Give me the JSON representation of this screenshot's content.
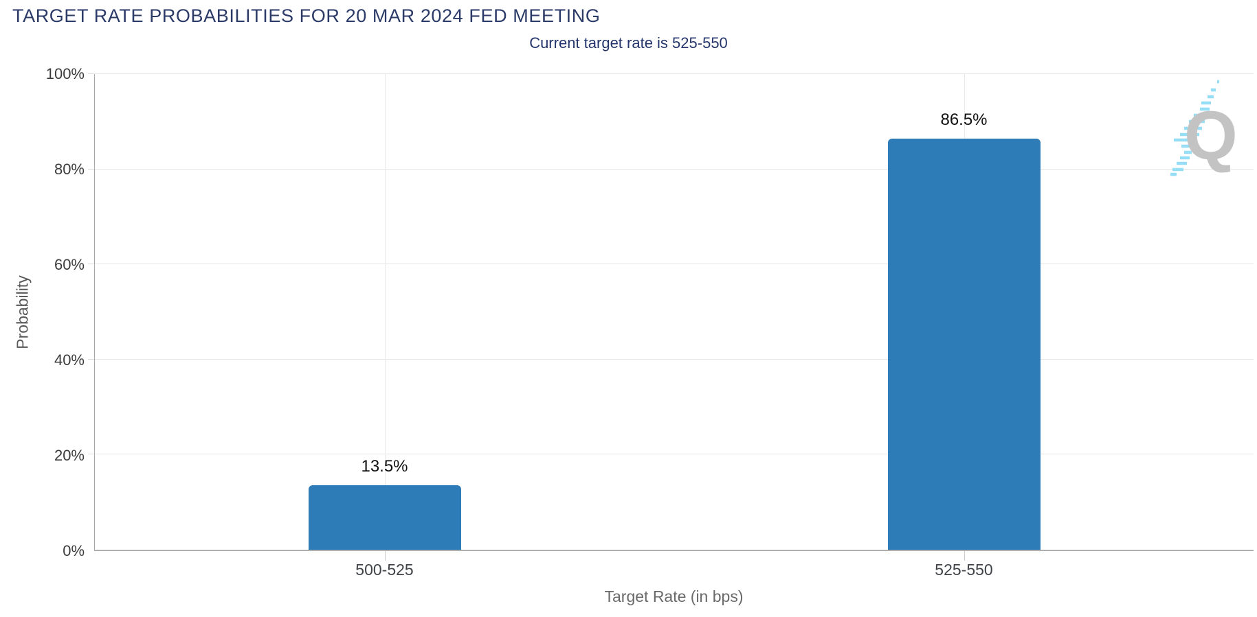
{
  "chart_data": {
    "type": "bar",
    "title": "TARGET RATE PROBABILITIES FOR 20 MAR 2024 FED MEETING",
    "subtitle": "Current target rate is 525-550",
    "categories": [
      "500-525",
      "525-550"
    ],
    "values": [
      13.5,
      86.5
    ],
    "data_labels": [
      "13.5%",
      "86.5%"
    ],
    "xlabel": "Target Rate (in bps)",
    "ylabel": "Probability",
    "ylim": [
      0,
      100
    ],
    "yticks": [
      0,
      20,
      40,
      60,
      80,
      100
    ],
    "ytick_labels": [
      "0%",
      "20%",
      "40%",
      "60%",
      "80%",
      "100%"
    ],
    "grid": true,
    "legend_position": "none",
    "bar_color": "#2d7cb8"
  },
  "watermark": {
    "icon": "q-speed-logo",
    "letter": "Q",
    "letter_color": "#c3c3c3",
    "stripe_color": "#96ddf6"
  },
  "colors": {
    "title": "#2b3a67",
    "subtitle": "#24356b",
    "axis_line": "#a8a8a8",
    "gridline": "#e4e4e4",
    "tick_label": "#3b3b3b",
    "category_label": "#3f4348",
    "axis_title": "#6a6a6a",
    "data_label": "#111111"
  }
}
